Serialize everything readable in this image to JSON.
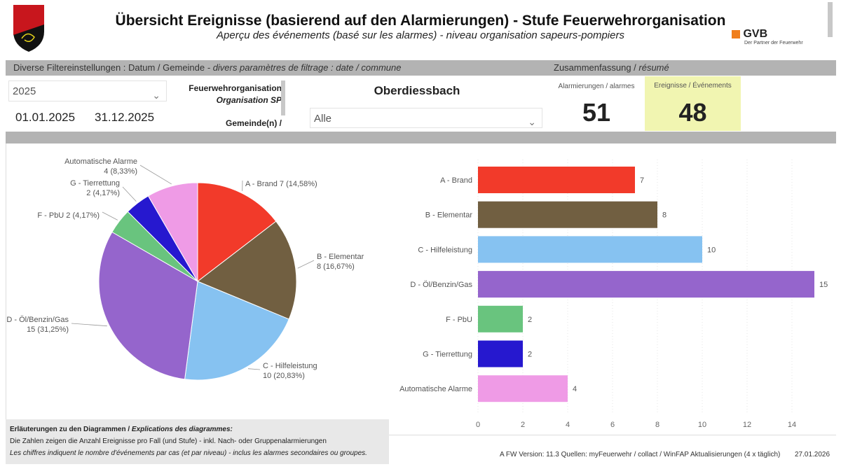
{
  "header": {
    "title": "Übersicht Ereignisse (basierend auf den Alarmierungen) - Stufe Feuerwehrorganisation",
    "subtitle": "Aperçu des événements (basé sur les alarmes) - niveau organisation sapeurs-pompiers",
    "logo_left": "Feuerwehr-Inspektorat Inspectorat des sapeurs-pompiers",
    "logo_right": "GVB",
    "logo_right_tagline": "Der Partner der Feuerwehr"
  },
  "filters": {
    "section_label": "Diverse Filtereinstellungen : Datum / Gemeinde",
    "section_label_fr": "- divers paramètres de filtrage : date / commune",
    "year": "2025",
    "date_from": "01.01.2025",
    "date_to": "31.12.2025",
    "org_label": "Feuerwehrorganisation",
    "org_label_fr": "Organisation SP",
    "municipality_label": "Gemeinde(n) /",
    "org_value": "Oberdiessbach",
    "municipality_value": "Alle"
  },
  "summary": {
    "section_label": "Zusammenfassung / ",
    "section_label_fr": "résumé",
    "alarms_label": "Alarmierungen / alarmes",
    "alarms_value": "51",
    "events_label": "Ereignisse / Événements",
    "events_value": "48"
  },
  "chart_data": [
    {
      "type": "pie",
      "slices": [
        {
          "label": "A - Brand",
          "value": 7,
          "pct": "14,58%",
          "color": "#f23a2a"
        },
        {
          "label": "B - Elementar",
          "value": 8,
          "pct": "16,67%",
          "color": "#715f41"
        },
        {
          "label": "C - Hilfeleistung",
          "value": 10,
          "pct": "20,83%",
          "color": "#86c2f1"
        },
        {
          "label": "D - Öl/Benzin/Gas",
          "value": 15,
          "pct": "31,25%",
          "color": "#9565cc"
        },
        {
          "label": "F - PbU",
          "value": 2,
          "pct": "4,17%",
          "color": "#69c47e"
        },
        {
          "label": "G - Tierrettung",
          "value": 2,
          "pct": "4,17%",
          "color": "#2618cf"
        },
        {
          "label": "Automatische Alarme",
          "value": 4,
          "pct": "8,33%",
          "color": "#ef9be6"
        }
      ]
    },
    {
      "type": "bar",
      "orientation": "horizontal",
      "categories": [
        "A - Brand",
        "B - Elementar",
        "C - Hilfeleistung",
        "D - Öl/Benzin/Gas",
        "F - PbU",
        "G - Tierrettung",
        "Automatische Alarme"
      ],
      "values": [
        7,
        8,
        10,
        15,
        2,
        2,
        4
      ],
      "colors": [
        "#f23a2a",
        "#715f41",
        "#86c2f1",
        "#9565cc",
        "#69c47e",
        "#2618cf",
        "#ef9be6"
      ],
      "xlim": [
        0,
        15.5
      ],
      "xticks": [
        0,
        2,
        4,
        6,
        8,
        10,
        12,
        14
      ],
      "grid": true
    }
  ],
  "notes": {
    "title": "Erläuterungen zu den Diagrammen / ",
    "title_fr": "Explications des diagrammes:",
    "line1": "Die Zahlen zeigen die Anzahl Ereignisse pro Fall (und Stufe) - inkl. Nach- oder Gruppenalarmierungen",
    "line2": "Les chiffres indiquent le nombre d'événements par cas (et par niveau) -  inclus les alarmes secondaires ou groupes."
  },
  "footer": {
    "text": "A FW  Version: 11.3  Quellen: myFeuerwehr / collact / WinFAP  Aktualisierungen (4 x täglich)",
    "date": "27.01.2026"
  }
}
